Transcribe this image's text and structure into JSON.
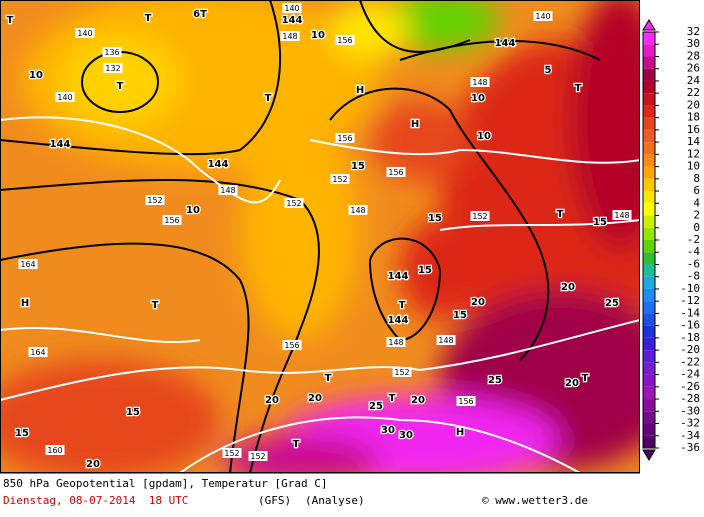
{
  "map": {
    "labels": [
      "140",
      "136",
      "132",
      "T",
      "T",
      "T",
      "6T",
      "144",
      "140",
      "148",
      "10",
      "156",
      "140",
      "144",
      "5",
      "T",
      "H",
      "148",
      "10",
      "H",
      "10",
      "10",
      "140",
      "144",
      "144",
      "T",
      "156",
      "15",
      "156",
      "152",
      "148",
      "152",
      "10",
      "156",
      "152",
      "148",
      "15",
      "152",
      "T",
      "15",
      "148",
      "164",
      "H",
      "T",
      "144",
      "15",
      "T",
      "144",
      "20",
      "15",
      "20",
      "25",
      "164",
      "156",
      "148",
      "148",
      "152",
      "T",
      "20",
      "20",
      "T",
      "20",
      "25",
      "20",
      "T",
      "15",
      "25",
      "156",
      "15",
      "30",
      "30",
      "H",
      "160",
      "20",
      "T",
      "152",
      "152"
    ]
  },
  "colorbar": {
    "ticks": [
      32,
      30,
      28,
      26,
      24,
      22,
      20,
      18,
      16,
      14,
      12,
      10,
      8,
      6,
      4,
      2,
      0,
      -2,
      -4,
      -6,
      -8,
      -10,
      -12,
      -14,
      -16,
      -18,
      -20,
      -22,
      -24,
      -26,
      -28,
      -30,
      -32,
      -34,
      -36
    ],
    "colors": [
      "#ff28ff",
      "#e619c8",
      "#c80a8c",
      "#a00046",
      "#b40028",
      "#c8141e",
      "#dc2814",
      "#e6461e",
      "#f05a28",
      "#f56e1e",
      "#fa8c14",
      "#ffa50a",
      "#ffc800",
      "#ffe600",
      "#ffff00",
      "#c8f000",
      "#96e600",
      "#64d200",
      "#32be32",
      "#1ebe96",
      "#1eaadc",
      "#1e8cf0",
      "#1e6ef0",
      "#1e50e6",
      "#1e32dc",
      "#3c1edc",
      "#5a1edc",
      "#781ed2",
      "#8c14c8",
      "#a014b4",
      "#8c0aa0",
      "#780a8c",
      "#640078",
      "#500064"
    ]
  },
  "footer": {
    "title": "850 hPa Geopotential [gpdam], Temperatur [Grad C]",
    "date": "Dienstag, 08-07-2014  18 UTC",
    "model": "(GFS)",
    "run": "(Analyse)",
    "credit": "© www.wetter3.de"
  }
}
